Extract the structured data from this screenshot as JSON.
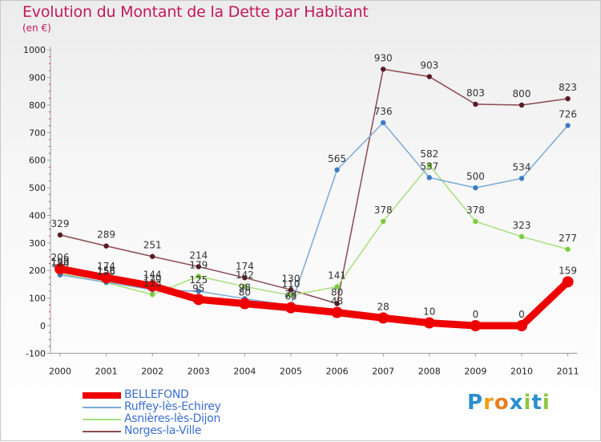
{
  "chart_data": {
    "type": "line",
    "title": "Evolution du Montant de la Dette par Habitant",
    "subtitle": "(en €)",
    "x": [
      "2000",
      "2001",
      "2002",
      "2003",
      "2004",
      "2005",
      "2006",
      "2007",
      "2008",
      "2009",
      "2010",
      "2011"
    ],
    "ylim": [
      -100,
      1000
    ],
    "yticks": [
      -100,
      0,
      100,
      200,
      300,
      400,
      500,
      600,
      700,
      800,
      900,
      1000
    ],
    "grid": false,
    "legend_position": "bottom-left",
    "series": [
      {
        "name": "Norges-la-Ville",
        "color": "#8b4a52",
        "point_color": "#5a1a22",
        "values": [
          329,
          289,
          251,
          214,
          174,
          130,
          80,
          930,
          903,
          803,
          800,
          823
        ]
      },
      {
        "name": "Asnières-lès-Dijon",
        "color": "#a6e07a",
        "point_color": "#7acc3c",
        "values": [
          190,
          156,
          113,
          179,
          142,
          110,
          141,
          378,
          582,
          378,
          323,
          277
        ]
      },
      {
        "name": "Ruffey-lès-Echirey",
        "color": "#7aaad8",
        "point_color": "#3a7cc4",
        "values": [
          184,
          158,
          130,
          125,
          98,
          73,
          565,
          736,
          537,
          500,
          534,
          726
        ]
      },
      {
        "name": "BELLEFOND",
        "color": "#ee0000",
        "point_color": "#ee0000",
        "values": [
          206,
          174,
          144,
          95,
          80,
          65,
          48,
          28,
          10,
          0,
          0,
          159
        ]
      }
    ],
    "data_labels": {
      "Norges-la-Ville": [
        "329",
        "289",
        "251",
        "214",
        "174",
        "130",
        "80",
        "930",
        "903",
        "803",
        "800",
        "823"
      ],
      "Asnières-lès-Dijon": [
        "190",
        "156",
        "113",
        "179",
        "142",
        "110",
        "141",
        "378",
        "582",
        "378",
        "323",
        "277"
      ],
      "Ruffey-lès-Echirey": [
        "184",
        "158",
        "130",
        "125",
        "98",
        "73",
        "565",
        "736",
        "537",
        "500",
        "534",
        "726"
      ],
      "BELLEFOND": [
        "206",
        "174",
        "144",
        "95",
        "80",
        "65",
        "48",
        "28",
        "10",
        "0",
        "0",
        "159"
      ]
    }
  },
  "legend": {
    "items": [
      {
        "label": "BELLEFOND",
        "color": "#ee0000"
      },
      {
        "label": "Ruffey-lès-Echirey",
        "color": "#7aaad8"
      },
      {
        "label": "Asnières-lès-Dijon",
        "color": "#a6e07a"
      },
      {
        "label": "Norges-la-Ville",
        "color": "#8b4a52"
      }
    ]
  },
  "logo": {
    "letters": [
      "P",
      "r",
      "o",
      "x",
      "i",
      "t",
      "i"
    ],
    "colors": [
      "#2a8fd0",
      "#f39c12",
      "#e67e22",
      "#2a8fd0",
      "#8cc63f",
      "#2a8fd0",
      "#8cc63f"
    ]
  }
}
